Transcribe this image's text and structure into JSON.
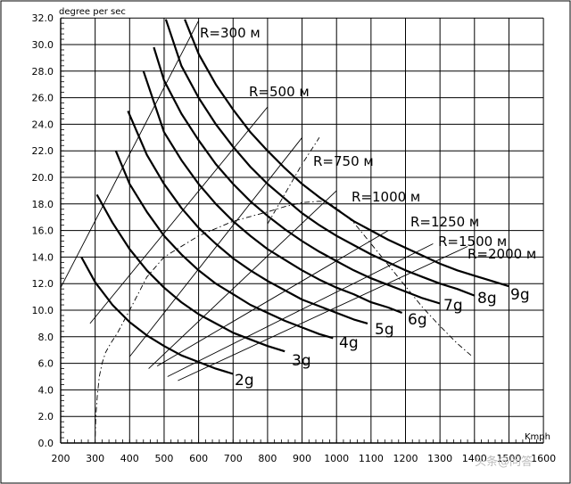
{
  "chart_data": {
    "type": "line",
    "title": "",
    "ylabel": "degree per sec",
    "xlabel": "Kmph",
    "xlim": [
      200,
      1400
    ],
    "ylim": [
      0,
      32
    ],
    "x_ticks": [
      "200",
      "300",
      "400",
      "500",
      "600",
      "700",
      "800",
      "900",
      "1000",
      "1100",
      "1200",
      "1300",
      "1400",
      "1500",
      "1600"
    ],
    "y_ticks": [
      "0.0",
      "2.0",
      "4.0",
      "6.0",
      "8.0",
      "10.0",
      "12.0",
      "14.0",
      "16.0",
      "18.0",
      "20.0",
      "22.0",
      "24.0",
      "26.0",
      "28.0",
      "30.0",
      "32.0"
    ],
    "grid": true,
    "g_curves": [
      {
        "name": "2g",
        "x": [
          260,
          300,
          350,
          400,
          450,
          500,
          550,
          600,
          650,
          700
        ],
        "y": [
          14.0,
          12.1,
          10.4,
          9.1,
          8.1,
          7.3,
          6.6,
          6.1,
          5.6,
          5.2
        ]
      },
      {
        "name": "3g",
        "x": [
          305,
          350,
          400,
          450,
          500,
          550,
          600,
          650,
          700,
          750,
          800,
          850
        ],
        "y": [
          18.7,
          16.6,
          14.6,
          13.0,
          11.7,
          10.6,
          9.7,
          9.0,
          8.3,
          7.8,
          7.3,
          6.9
        ]
      },
      {
        "name": "4g",
        "x": [
          360,
          400,
          450,
          500,
          550,
          600,
          650,
          700,
          750,
          800,
          850,
          900,
          950,
          990
        ],
        "y": [
          22.0,
          19.5,
          17.4,
          15.6,
          14.2,
          13.0,
          12.0,
          11.2,
          10.4,
          9.8,
          9.2,
          8.7,
          8.2,
          7.9
        ]
      },
      {
        "name": "5g",
        "x": [
          395,
          450,
          500,
          550,
          600,
          650,
          700,
          750,
          800,
          850,
          900,
          950,
          1000,
          1050,
          1090
        ],
        "y": [
          25.0,
          21.7,
          19.5,
          17.7,
          16.2,
          15.0,
          13.9,
          13.0,
          12.2,
          11.5,
          10.8,
          10.3,
          9.8,
          9.3,
          9.0
        ]
      },
      {
        "name": "6g",
        "x": [
          440,
          500,
          550,
          600,
          650,
          700,
          750,
          800,
          850,
          900,
          950,
          1000,
          1050,
          1100,
          1150,
          1190
        ],
        "y": [
          28.0,
          23.4,
          21.3,
          19.5,
          18.0,
          16.7,
          15.6,
          14.6,
          13.8,
          13.0,
          12.3,
          11.7,
          11.2,
          10.6,
          10.2,
          9.8
        ]
      },
      {
        "name": "7g",
        "x": [
          470,
          500,
          550,
          600,
          650,
          700,
          750,
          800,
          850,
          900,
          950,
          1000,
          1050,
          1100,
          1150,
          1200,
          1250,
          1300
        ],
        "y": [
          29.8,
          27.3,
          24.8,
          22.8,
          21.0,
          19.5,
          18.2,
          17.1,
          16.1,
          15.2,
          14.4,
          13.7,
          13.0,
          12.4,
          11.9,
          11.4,
          10.9,
          10.5
        ]
      },
      {
        "name": "8g",
        "x": [
          505,
          550,
          600,
          650,
          700,
          750,
          800,
          850,
          900,
          950,
          1000,
          1050,
          1100,
          1150,
          1200,
          1250,
          1300,
          1350,
          1400
        ],
        "y": [
          31.9,
          28.4,
          26.0,
          24.0,
          22.3,
          20.8,
          19.5,
          18.4,
          17.3,
          16.4,
          15.6,
          14.9,
          14.2,
          13.6,
          13.0,
          12.5,
          12.0,
          11.6,
          11.1
        ]
      },
      {
        "name": "9g",
        "x": [
          560,
          600,
          650,
          700,
          750,
          800,
          850,
          900,
          950,
          1000,
          1050,
          1100,
          1150,
          1200,
          1250,
          1300,
          1350,
          1400,
          1450,
          1500
        ],
        "y": [
          31.9,
          29.3,
          27.0,
          25.1,
          23.4,
          22.0,
          20.7,
          19.5,
          18.5,
          17.6,
          16.7,
          16.0,
          15.3,
          14.7,
          14.1,
          13.5,
          13.0,
          12.6,
          12.2,
          11.8
        ]
      }
    ],
    "r_lines": [
      {
        "name": "R=300 м",
        "x": [
          200,
          600
        ],
        "y": [
          11.7,
          31.8
        ]
      },
      {
        "name": "R=500 м",
        "x": [
          285,
          800
        ],
        "y": [
          9.0,
          25.3
        ]
      },
      {
        "name": "R=750 м",
        "x": [
          400,
          900
        ],
        "y": [
          6.5,
          23.0
        ]
      },
      {
        "name": "R=1000 м",
        "x": [
          455,
          1000
        ],
        "y": [
          5.6,
          19.0
        ]
      },
      {
        "name": "R=1250 м",
        "x": [
          480,
          1150
        ],
        "y": [
          5.8,
          16.0
        ]
      },
      {
        "name": "R=1500 м",
        "x": [
          510,
          1280
        ],
        "y": [
          5.0,
          15.0
        ]
      },
      {
        "name": "R=2000 м",
        "x": [
          540,
          1380
        ],
        "y": [
          4.7,
          14.8
        ]
      }
    ],
    "envelope": {
      "x": [
        300,
        302,
        306,
        312,
        320,
        330,
        345,
        365,
        400,
        450,
        500,
        600,
        700,
        800,
        850,
        900,
        950,
        975,
        1000,
        1050,
        1100,
        1150,
        1200,
        1250,
        1300,
        1350,
        1390
      ],
      "y": [
        0.5,
        2.0,
        3.5,
        5.0,
        6.0,
        6.8,
        7.5,
        8.3,
        10.0,
        12.5,
        14.0,
        15.6,
        16.7,
        17.4,
        17.8,
        18.1,
        18.2,
        18.1,
        17.7,
        16.6,
        15.0,
        13.4,
        11.8,
        10.2,
        8.8,
        7.5,
        6.6
      ]
    },
    "envelope2": {
      "x": [
        800,
        900,
        950
      ],
      "y": [
        16.5,
        21.0,
        23.0
      ]
    }
  },
  "watermark": "头条@问答"
}
